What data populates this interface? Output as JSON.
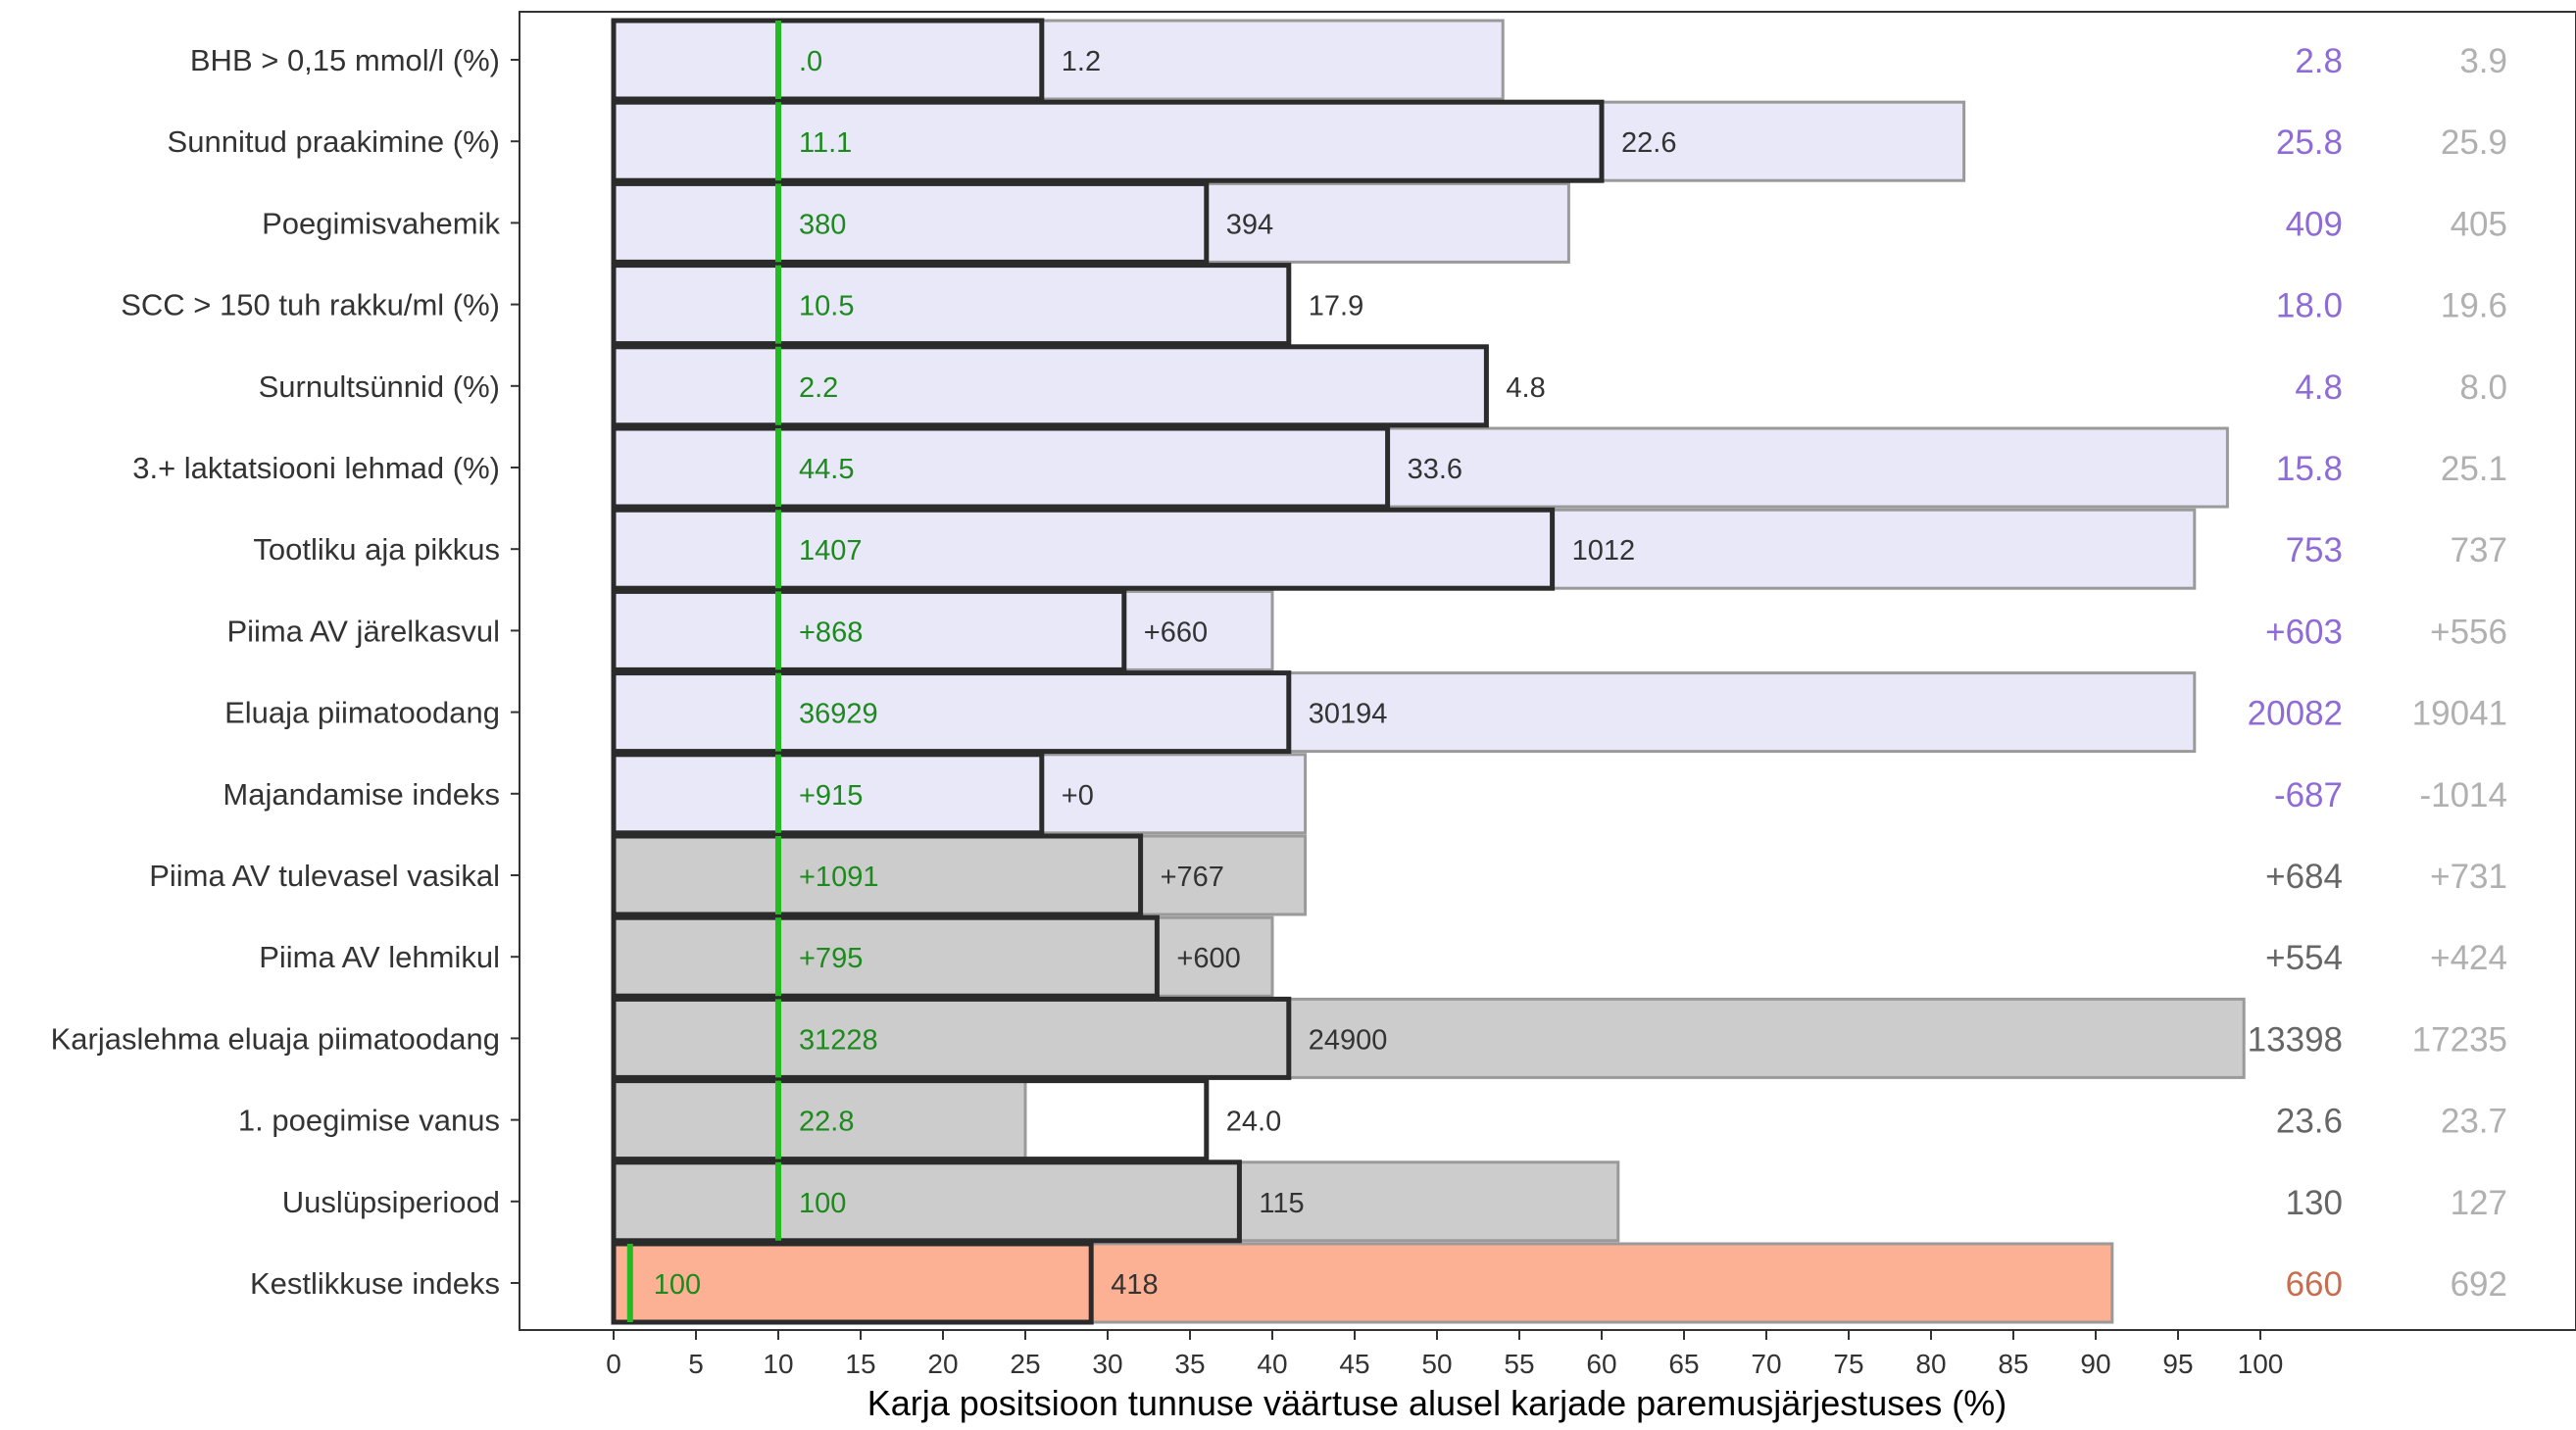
{
  "chart_data": {
    "type": "bar",
    "title": "",
    "xlabel": "Karja positsioon tunnuse väärtuse alusel karjade paremusjärjestuses (%)",
    "ylabel": "",
    "xlim": [
      0,
      100
    ],
    "x_ticks": [
      0,
      5,
      10,
      15,
      20,
      25,
      30,
      35,
      40,
      45,
      50,
      55,
      60,
      65,
      70,
      75,
      80,
      85,
      90,
      95,
      100
    ],
    "grid": false,
    "legend": "none",
    "reference_lines": [
      {
        "value": 10,
        "rows": "all except Kestlikkuse indeks",
        "color": "#22bb22"
      },
      {
        "value": 1,
        "rows": "Kestlikkuse indeks",
        "color": "#22bb22"
      }
    ],
    "colors": {
      "group_lavender": "#e8e8f8",
      "group_gray": "#cccccc",
      "group_salmon": "#fcb194",
      "outline_dark": "#2b2b2b",
      "outline_light": "#9a9a9a",
      "green_text": "#1c8a1c",
      "dark_text": "#333333",
      "purple_text": "#8e6bd6",
      "gray_text": "#666666",
      "lightgray_text": "#b0b0b0",
      "salmon_text": "#c86e4f"
    },
    "rows": [
      {
        "label": "BHB > 0,15 mmol/l (%)",
        "group": "lavender",
        "herd_pos": 26,
        "bg_pos": 54,
        "green": ".0",
        "herd": "1.2",
        "col1": "2.8",
        "col2": "3.9"
      },
      {
        "label": "Sunnitud praakimine (%)",
        "group": "lavender",
        "herd_pos": 60,
        "bg_pos": 82,
        "green": "11.1",
        "herd": "22.6",
        "col1": "25.8",
        "col2": "25.9"
      },
      {
        "label": "Poegimisvahemik",
        "group": "lavender",
        "herd_pos": 36,
        "bg_pos": 58,
        "green": "380",
        "herd": "394",
        "col1": "409",
        "col2": "405"
      },
      {
        "label": "SCC > 150 tuh rakku/ml (%)",
        "group": "lavender",
        "herd_pos": 41,
        "bg_pos": 41,
        "green": "10.5",
        "herd": "17.9",
        "col1": "18.0",
        "col2": "19.6"
      },
      {
        "label": "Surnultsünnid (%)",
        "group": "lavender",
        "herd_pos": 53,
        "bg_pos": 53,
        "green": "2.2",
        "herd": "4.8",
        "col1": "4.8",
        "col2": "8.0"
      },
      {
        "label": "3.+ laktatsiooni lehmad (%)",
        "group": "lavender",
        "herd_pos": 47,
        "bg_pos": 98,
        "green": "44.5",
        "herd": "33.6",
        "col1": "15.8",
        "col2": "25.1"
      },
      {
        "label": "Tootliku aja pikkus",
        "group": "lavender",
        "herd_pos": 57,
        "bg_pos": 96,
        "green": "1407",
        "herd": "1012",
        "col1": "753",
        "col2": "737"
      },
      {
        "label": "Piima AV järelkasvul",
        "group": "lavender",
        "herd_pos": 31,
        "bg_pos": 40,
        "green": "+868",
        "herd": "+660",
        "col1": "+603",
        "col2": "+556"
      },
      {
        "label": "Eluaja piimatoodang",
        "group": "lavender",
        "herd_pos": 41,
        "bg_pos": 96,
        "green": "36929",
        "herd": "30194",
        "col1": "20082",
        "col2": "19041"
      },
      {
        "label": "Majandamise indeks",
        "group": "lavender",
        "herd_pos": 26,
        "bg_pos": 42,
        "green": "+915",
        "herd": "+0",
        "col1": "-687",
        "col2": "-1014"
      },
      {
        "label": "Piima AV tulevasel vasikal",
        "group": "gray",
        "herd_pos": 32,
        "bg_pos": 42,
        "green": "+1091",
        "herd": "+767",
        "col1": "+684",
        "col2": "+731"
      },
      {
        "label": "Piima AV lehmikul",
        "group": "gray",
        "herd_pos": 33,
        "bg_pos": 40,
        "green": "+795",
        "herd": "+600",
        "col1": "+554",
        "col2": "+424"
      },
      {
        "label": "Karjaslehma eluaja piimatoodang",
        "group": "gray",
        "herd_pos": 41,
        "bg_pos": 99,
        "green": "31228",
        "herd": "24900",
        "col1": "13398",
        "col2": "17235"
      },
      {
        "label": "1. poegimise vanus",
        "group": "gray",
        "herd_pos": 36,
        "bg_pos": 25,
        "green": "22.8",
        "herd": "24.0",
        "col1": "23.6",
        "col2": "23.7"
      },
      {
        "label": "Uuslüpsiperiood",
        "group": "gray",
        "herd_pos": 38,
        "bg_pos": 61,
        "green": "100",
        "herd": "115",
        "col1": "130",
        "col2": "127"
      },
      {
        "label": "Kestlikkuse indeks",
        "group": "salmon",
        "herd_pos": 29,
        "bg_pos": 91,
        "green": "100",
        "herd": "418",
        "col1": "660",
        "col2": "692"
      }
    ]
  }
}
